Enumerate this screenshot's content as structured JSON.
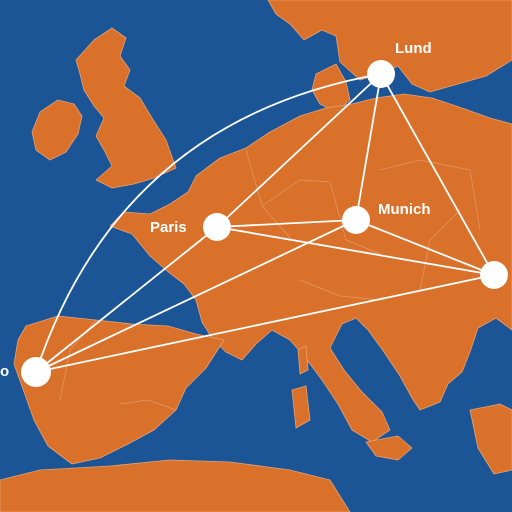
{
  "map": {
    "colors": {
      "sea": "#1b5596",
      "land": "#d9712a",
      "route": "#ffffff",
      "label": "#ffffff"
    },
    "cities": [
      {
        "id": "lund",
        "label": "Lund"
      },
      {
        "id": "paris",
        "label": "Paris"
      },
      {
        "id": "munich",
        "label": "Munich"
      },
      {
        "id": "porto",
        "label": "o"
      },
      {
        "id": "vienna",
        "label": ""
      }
    ],
    "routes": [
      [
        "porto",
        "lund"
      ],
      [
        "porto",
        "paris"
      ],
      [
        "porto",
        "munich"
      ],
      [
        "porto",
        "vienna"
      ],
      [
        "paris",
        "lund"
      ],
      [
        "paris",
        "munich"
      ],
      [
        "paris",
        "vienna"
      ],
      [
        "lund",
        "munich"
      ],
      [
        "lund",
        "vienna"
      ],
      [
        "munich",
        "vienna"
      ]
    ]
  }
}
